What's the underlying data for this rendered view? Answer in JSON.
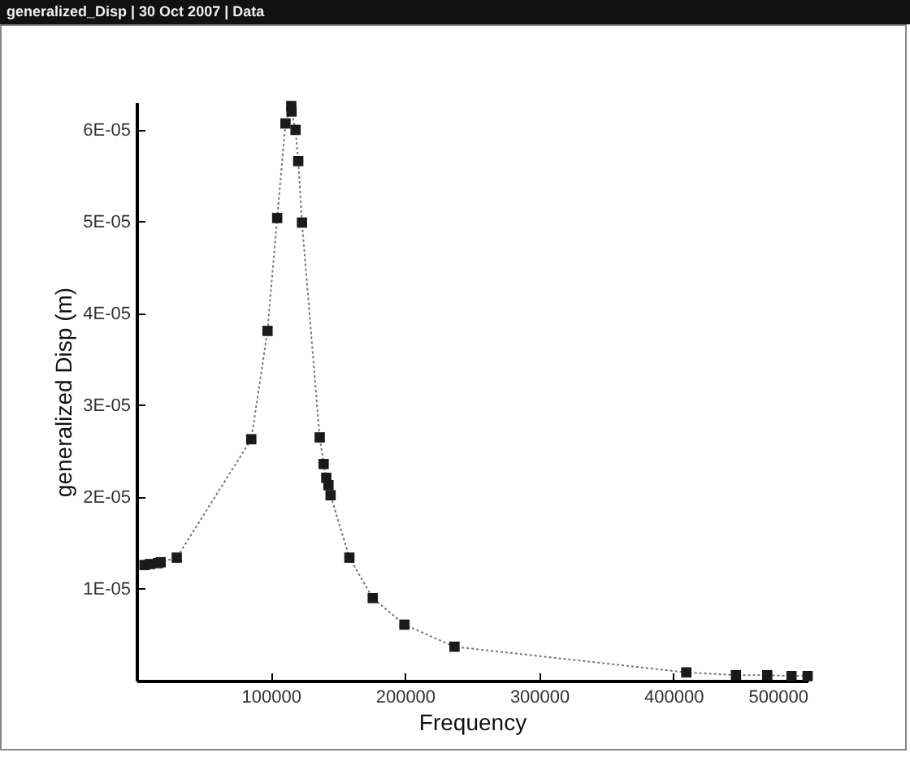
{
  "chart_data": {
    "type": "line",
    "title": "generalized_Disp | 30 Oct 2007 | Data",
    "xlabel": "Frequency",
    "ylabel": "generalized Disp (m)",
    "x": [
      6000,
      10000,
      16000,
      18000,
      30000,
      85500,
      97600,
      104800,
      111000,
      115300,
      115500,
      118500,
      120500,
      123300,
      136500,
      139400,
      141400,
      143000,
      144600,
      158600,
      176000,
      199600,
      236900,
      409600,
      446600,
      469900,
      488000,
      500000
    ],
    "series": [
      {
        "color": "#1a1a1a",
        "values": [
          1.26e-05,
          1.27e-05,
          1.28e-05,
          1.29e-05,
          1.34e-05,
          2.63e-05,
          3.81e-05,
          5.04e-05,
          6.07e-05,
          6.26e-05,
          6.2e-05,
          6e-05,
          5.66e-05,
          4.99e-05,
          2.65e-05,
          2.36e-05,
          2.21e-05,
          2.13e-05,
          2.02e-05,
          1.34e-05,
          9e-06,
          6.1e-06,
          3.7e-06,
          9e-07,
          6e-07,
          6e-07,
          5e-07,
          5e-07
        ]
      }
    ],
    "xlim": [
      0,
      500000
    ],
    "xticks": [
      100000,
      200000,
      300000,
      400000,
      500000
    ],
    "ylim": [
      0,
      6.3e-05
    ],
    "yticks": [
      {
        "value": 1e-05,
        "label": "1E-05"
      },
      {
        "value": 2e-05,
        "label": "2E-05"
      },
      {
        "value": 3e-05,
        "label": "3E-05"
      },
      {
        "value": 4e-05,
        "label": "4E-05"
      },
      {
        "value": 5e-05,
        "label": "5E-05"
      },
      {
        "value": 6e-05,
        "label": "6E-05"
      }
    ],
    "marker": "square",
    "line_style": "dotted",
    "grid": false
  }
}
